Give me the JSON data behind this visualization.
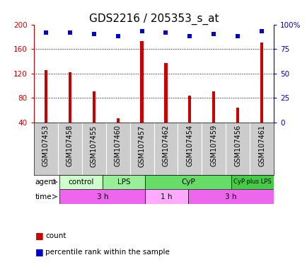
{
  "title": "GDS2216 / 205353_s_at",
  "samples": [
    "GSM107453",
    "GSM107458",
    "GSM107455",
    "GSM107460",
    "GSM107457",
    "GSM107462",
    "GSM107454",
    "GSM107459",
    "GSM107456",
    "GSM107461"
  ],
  "counts": [
    125,
    122,
    90,
    47,
    173,
    137,
    84,
    91,
    64,
    170
  ],
  "percentiles": [
    92,
    92,
    90,
    88,
    93,
    92,
    88,
    90,
    88,
    93
  ],
  "ylim_left": [
    40,
    200
  ],
  "ylim_right": [
    0,
    100
  ],
  "yticks_left": [
    40,
    80,
    120,
    160,
    200
  ],
  "yticks_right": [
    0,
    25,
    50,
    75,
    100
  ],
  "agent_groups": [
    {
      "label": "control",
      "start": 0,
      "end": 2
    },
    {
      "label": "LPS",
      "start": 2,
      "end": 4
    },
    {
      "label": "CyP",
      "start": 4,
      "end": 8
    },
    {
      "label": "CyP plus LPS",
      "start": 8,
      "end": 10
    }
  ],
  "agent_colors": [
    "#ccffcc",
    "#99ee99",
    "#66dd66",
    "#44cc44"
  ],
  "time_groups": [
    {
      "label": "3 h",
      "start": 0,
      "end": 4
    },
    {
      "label": "1 h",
      "start": 4,
      "end": 6
    },
    {
      "label": "3 h",
      "start": 6,
      "end": 10
    }
  ],
  "time_color_dark": "#ee66ee",
  "time_color_light": "#ffaaff",
  "sample_bg": "#cccccc",
  "bar_color": "#cc0000",
  "dot_color": "#0000cc",
  "left_axis_color": "#cc0000",
  "right_axis_color": "#0000cc",
  "bar_width": 0.12,
  "dot_size": 5,
  "title_fontsize": 11,
  "tick_fontsize": 7.5,
  "sample_fontsize": 7,
  "label_fontsize": 7.5,
  "legend_fontsize": 7.5,
  "grid_ticks": [
    80,
    120,
    160
  ]
}
